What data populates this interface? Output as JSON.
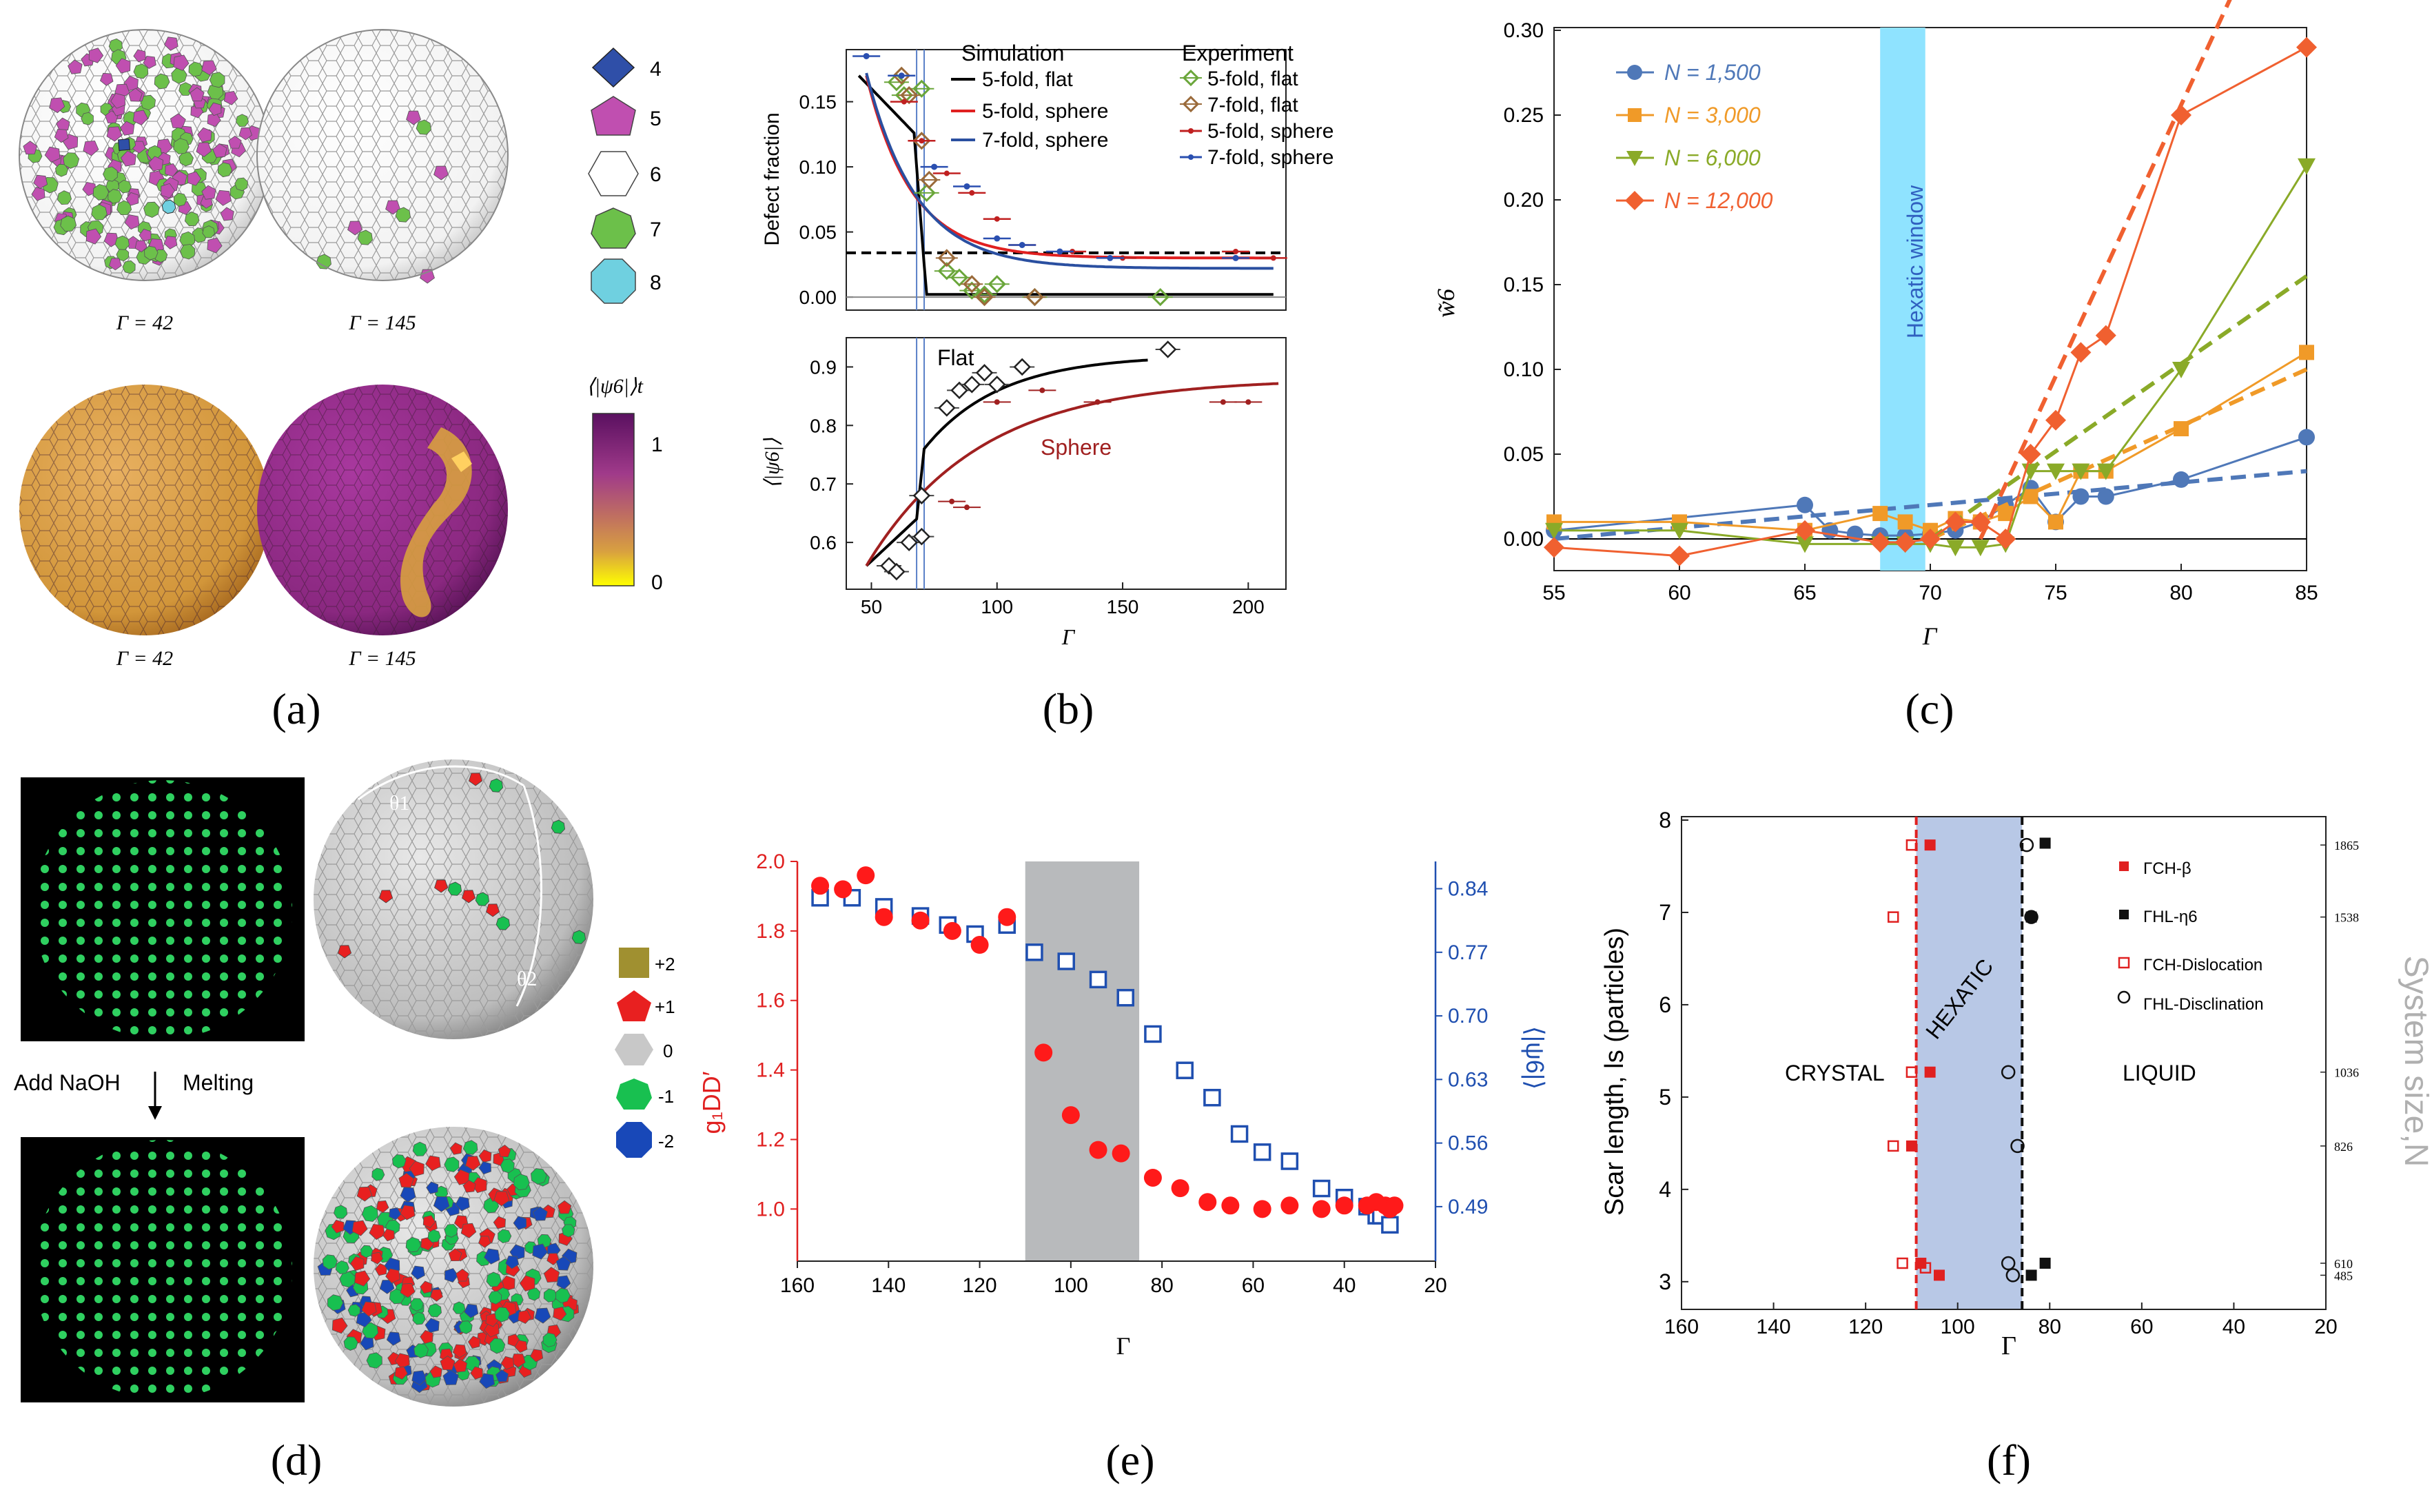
{
  "panel_labels": {
    "a": "(a)",
    "b": "(b)",
    "c": "(c)",
    "d": "(d)",
    "e": "(e)",
    "f": "(f)"
  },
  "colors": {
    "defect4": "#2f4fa8",
    "defect5": "#c04fb0",
    "defect6": "#ffffff",
    "defect7": "#6cc04a",
    "defect8": "#6fd0e0",
    "sphere_low": "#d89a3c",
    "sphere_high": "#8a2a8a",
    "scale_top": "#5a1060",
    "scale_bottom": "#ffff00",
    "red": "#e8202a",
    "blue": "#1f4fb0",
    "hexatic": "#8fe3ff",
    "shade_e": "#9a9ca0",
    "shade_f": "#b8c8e6"
  },
  "panel_a": {
    "sphere_labels": [
      "Γ = 42",
      "Γ = 145",
      "Γ = 42",
      "Γ = 145"
    ],
    "legend_items": [
      "4",
      "5",
      "6",
      "7",
      "8"
    ],
    "colorbar_title": "⟨|ψ6|⟩t",
    "colorbar_ticks": [
      "1",
      "0"
    ]
  },
  "panel_d": {
    "add_label": "Add NaOH",
    "melt_label": "Melting",
    "legend_items": [
      "+2",
      "+1",
      "0",
      "-1",
      "-2"
    ],
    "theta1": "θ1",
    "theta2": "θ2"
  },
  "chart_data": [
    {
      "panel": "b-top",
      "type": "scatter",
      "ylabel": "Defect fraction",
      "xlim": [
        40,
        215
      ],
      "ylim": [
        -0.01,
        0.19
      ],
      "yticks": [
        "0.15",
        "0.10",
        "0.05",
        "0.00"
      ],
      "legend_sim_title": "Simulation",
      "legend_exp_title": "Experiment",
      "legend_sim": [
        "5-fold, flat",
        "5-fold, sphere",
        "7-fold, sphere"
      ],
      "legend_exp": [
        "5-fold, flat",
        "7-fold, flat",
        "5-fold, sphere",
        "7-fold, sphere"
      ],
      "exp_5fold_flat": [
        [
          60,
          0.165
        ],
        [
          63,
          0.155
        ],
        [
          70,
          0.16
        ],
        [
          72,
          0.08
        ],
        [
          80,
          0.02
        ],
        [
          85,
          0.015
        ],
        [
          90,
          0.005
        ],
        [
          95,
          0.002
        ],
        [
          100,
          0.01
        ],
        [
          115,
          0
        ],
        [
          165,
          0
        ]
      ],
      "exp_7fold_flat": [
        [
          62,
          0.17
        ],
        [
          65,
          0.155
        ],
        [
          70,
          0.12
        ],
        [
          73,
          0.09
        ],
        [
          80,
          0.03
        ],
        [
          90,
          0.01
        ],
        [
          95,
          0
        ],
        [
          115,
          0
        ]
      ],
      "exp_5fold_sphere": [
        [
          63,
          0.15
        ],
        [
          70,
          0.12
        ],
        [
          80,
          0.095
        ],
        [
          90,
          0.08
        ],
        [
          100,
          0.06
        ],
        [
          110,
          0.04
        ],
        [
          130,
          0.035
        ],
        [
          150,
          0.03
        ],
        [
          195,
          0.035
        ],
        [
          210,
          0.03
        ]
      ],
      "exp_7fold_sphere": [
        [
          48,
          0.185
        ],
        [
          62,
          0.17
        ],
        [
          75,
          0.1
        ],
        [
          88,
          0.085
        ],
        [
          100,
          0.045
        ],
        [
          110,
          0.04
        ],
        [
          125,
          0.035
        ],
        [
          145,
          0.03
        ],
        [
          195,
          0.03
        ]
      ],
      "dashed_level": 0.034,
      "vlines": [
        68,
        71
      ]
    },
    {
      "panel": "b-bottom",
      "type": "line",
      "xlabel": "Γ",
      "ylabel": "⟨|ψ6|⟩",
      "xlim": [
        40,
        215
      ],
      "ylim": [
        0.52,
        0.95
      ],
      "xticks": [
        "50",
        "100",
        "150",
        "200"
      ],
      "yticks": [
        "0.9",
        "0.8",
        "0.7",
        "0.6"
      ],
      "label_flat": "Flat",
      "label_sphere": "Sphere",
      "flat_points": [
        [
          57,
          0.56
        ],
        [
          60,
          0.55
        ],
        [
          65,
          0.6
        ],
        [
          70,
          0.61
        ],
        [
          70,
          0.68
        ],
        [
          80,
          0.83
        ],
        [
          85,
          0.86
        ],
        [
          90,
          0.87
        ],
        [
          95,
          0.89
        ],
        [
          100,
          0.87
        ],
        [
          110,
          0.9
        ],
        [
          168,
          0.93
        ]
      ],
      "sphere_points": [
        [
          82,
          0.67
        ],
        [
          88,
          0.66
        ],
        [
          100,
          0.84
        ],
        [
          118,
          0.86
        ],
        [
          140,
          0.84
        ],
        [
          190,
          0.84
        ],
        [
          200,
          0.84
        ]
      ]
    },
    {
      "panel": "c",
      "type": "line",
      "xlabel": "Γ",
      "ylabel": "w̃6",
      "xlim": [
        55,
        85
      ],
      "ylim": [
        -0.015,
        0.3
      ],
      "xticks": [
        "55",
        "60",
        "65",
        "70",
        "75",
        "80",
        "85"
      ],
      "yticks": [
        "0.00",
        "0.05",
        "0.10",
        "0.15",
        "0.20",
        "0.25",
        "0.30"
      ],
      "window_label": "Hexatic window",
      "window": [
        68,
        69.8
      ],
      "series": [
        {
          "name": "N = 1,500",
          "color": "#4f78b8",
          "x": [
            55,
            65,
            66,
            67,
            68,
            69,
            70,
            71,
            72,
            73,
            74,
            75,
            76,
            77,
            80,
            85
          ],
          "y": [
            0.005,
            0.02,
            0.005,
            0.003,
            0.002,
            0.002,
            0.003,
            0.005,
            0.01,
            0.02,
            0.03,
            0.01,
            0.025,
            0.025,
            0.035,
            0.06
          ]
        },
        {
          "name": "N = 3,000",
          "color": "#f09a28",
          "x": [
            55,
            60,
            65,
            68,
            69,
            70,
            71,
            72,
            73,
            74,
            75,
            76,
            77,
            80,
            85
          ],
          "y": [
            0.01,
            0.01,
            0.005,
            0.015,
            0.01,
            0.005,
            0.012,
            0.01,
            0.015,
            0.025,
            0.01,
            0.04,
            0.04,
            0.065,
            0.11
          ]
        },
        {
          "name": "N = 6,000",
          "color": "#8aaa28",
          "x": [
            55,
            60,
            65,
            68,
            69,
            70,
            71,
            72,
            73,
            74,
            75,
            76,
            77,
            80,
            85
          ],
          "y": [
            0.005,
            0.005,
            -0.003,
            -0.003,
            -0.003,
            -0.003,
            -0.005,
            -0.005,
            -0.003,
            0.04,
            0.04,
            0.04,
            0.04,
            0.1,
            0.22
          ]
        },
        {
          "name": "N = 12,000",
          "color": "#f06030",
          "x": [
            55,
            60,
            65,
            68,
            69,
            70,
            71,
            72,
            73,
            74,
            75,
            76,
            77,
            80,
            85
          ],
          "y": [
            -0.005,
            -0.01,
            0.005,
            -0.002,
            -0.002,
            0,
            0.01,
            0.01,
            0,
            0.05,
            0.07,
            0.11,
            0.12,
            0.25,
            0.29
          ]
        }
      ]
    },
    {
      "panel": "e",
      "type": "scatter",
      "xlabel": "Γ",
      "ylabel_left": "g₁DD′",
      "ylabel_right": "⟨|ψ6|⟩",
      "xlim": [
        160,
        20
      ],
      "ylim_left": [
        0.85,
        2.0
      ],
      "ylim_right": [
        0.43,
        0.87
      ],
      "xticks": [
        "160",
        "140",
        "120",
        "100",
        "80",
        "60",
        "40",
        "20"
      ],
      "yticks_left": [
        "2.0",
        "1.8",
        "1.6",
        "1.4",
        "1.2",
        "1.0"
      ],
      "yticks_right": [
        "0.84",
        "0.77",
        "0.70",
        "0.63",
        "0.56",
        "0.49"
      ],
      "shade": [
        85,
        110
      ],
      "g_points": [
        [
          155,
          1.93
        ],
        [
          150,
          1.92
        ],
        [
          145,
          1.96
        ],
        [
          141,
          1.84
        ],
        [
          133,
          1.83
        ],
        [
          126,
          1.8
        ],
        [
          120,
          1.76
        ],
        [
          114,
          1.84
        ],
        [
          106,
          1.45
        ],
        [
          100,
          1.27
        ],
        [
          94,
          1.17
        ],
        [
          89,
          1.16
        ],
        [
          82,
          1.09
        ],
        [
          76,
          1.06
        ],
        [
          70,
          1.02
        ],
        [
          65,
          1.01
        ],
        [
          58,
          1.0
        ],
        [
          52,
          1.01
        ],
        [
          45,
          1.0
        ],
        [
          40,
          1.01
        ],
        [
          35,
          1.01
        ],
        [
          33,
          1.02
        ],
        [
          31,
          1.01
        ],
        [
          30,
          1.0
        ],
        [
          29,
          1.01
        ]
      ],
      "psi_points": [
        [
          155,
          0.83
        ],
        [
          148,
          0.83
        ],
        [
          141,
          0.82
        ],
        [
          133,
          0.81
        ],
        [
          127,
          0.8
        ],
        [
          121,
          0.79
        ],
        [
          114,
          0.8
        ],
        [
          108,
          0.77
        ],
        [
          101,
          0.76
        ],
        [
          94,
          0.74
        ],
        [
          88,
          0.72
        ],
        [
          82,
          0.68
        ],
        [
          75,
          0.64
        ],
        [
          69,
          0.61
        ],
        [
          63,
          0.57
        ],
        [
          58,
          0.55
        ],
        [
          52,
          0.54
        ],
        [
          45,
          0.51
        ],
        [
          40,
          0.5
        ],
        [
          35,
          0.49
        ],
        [
          33,
          0.48
        ],
        [
          32,
          0.48
        ],
        [
          30,
          0.47
        ]
      ]
    },
    {
      "panel": "f",
      "type": "scatter",
      "xlabel": "Γ",
      "ylabel": "Scar length, ls (particles)",
      "ylabel_right": "System size,N",
      "xlim": [
        160,
        20
      ],
      "ylim": [
        2.7,
        8
      ],
      "xticks": [
        "160",
        "140",
        "120",
        "100",
        "80",
        "60",
        "40",
        "20"
      ],
      "yticks": [
        "8",
        "7",
        "6",
        "5",
        "4",
        "3"
      ],
      "right_ticks": [
        "1865",
        "1538",
        "1036",
        "826",
        "610",
        "485"
      ],
      "region_labels": [
        "CRYSTAL",
        "HEXATIC",
        "LIQUID"
      ],
      "legend": [
        "ΓCH-β",
        "ΓHL-η6",
        "ΓCH-Dislocation",
        "ΓHL-Disclination"
      ],
      "vline_red": 109,
      "vline_black": 86,
      "shade": [
        86,
        109
      ],
      "ch_beta": [
        [
          106,
          7.73
        ],
        [
          106,
          5.27
        ],
        [
          110,
          4.47
        ],
        [
          108,
          3.2
        ],
        [
          104,
          3.07
        ]
      ],
      "hl_eta6": [
        [
          81,
          7.75
        ],
        [
          84,
          6.95
        ],
        [
          81,
          3.2
        ],
        [
          84,
          3.07
        ]
      ],
      "ch_dislocation": [
        [
          110,
          7.73
        ],
        [
          114,
          6.95
        ],
        [
          110,
          5.27
        ],
        [
          114,
          4.47
        ],
        [
          112,
          3.2
        ],
        [
          107,
          3.15
        ]
      ],
      "hl_disclination": [
        [
          85,
          7.73
        ],
        [
          84,
          6.95
        ],
        [
          89,
          5.27
        ],
        [
          87,
          4.47
        ],
        [
          89,
          3.2
        ],
        [
          88,
          3.07
        ]
      ]
    }
  ]
}
